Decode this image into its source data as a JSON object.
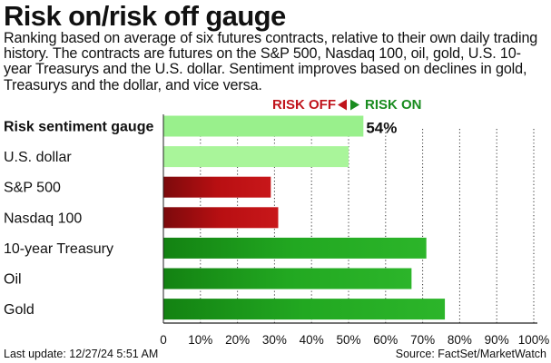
{
  "header": {
    "title": "Risk on/risk off gauge",
    "subtitle": "Ranking based on average of six futures contracts, relative to their own daily trading history. The contracts are futures on the S&P 500, Nasdaq 100, oil, gold, U.S. 10-year Treasurys and the U.S. dollar. Sentiment improves based on declines in gold, Treasurys and the dollar, and vice versa."
  },
  "legend": {
    "risk_off_label": "RISK OFF",
    "risk_on_label": "RISK ON"
  },
  "footer": {
    "last_update": "Last update: 12/27/24 5:51  AM",
    "source": "Source: FactSet/MarketWatch"
  },
  "colors": {
    "gauge": "#99f08c",
    "light_green": "#a9f59a",
    "red": "#b30f12",
    "green": "#1fa31e",
    "risk_off_text": "#c0141c",
    "risk_on_text": "#198c1f"
  },
  "chart_data": {
    "type": "bar",
    "orientation": "horizontal",
    "title": "Risk on/risk off gauge",
    "categories": [
      "Risk sentiment gauge",
      "U.S. dollar",
      "S&P 500",
      "Nasdaq 100",
      "10-year Treasury",
      "Oil",
      "Gold"
    ],
    "values": [
      54,
      50,
      29,
      31,
      71,
      67,
      76
    ],
    "bar_styles": [
      "gauge",
      "light_green",
      "red",
      "red",
      "green",
      "green",
      "green"
    ],
    "data_labels": [
      "54%",
      "",
      "",
      "",
      "",
      "",
      ""
    ],
    "xlim": [
      0,
      100
    ],
    "x_ticks": [
      "0",
      "10%",
      "20%",
      "30%",
      "40%",
      "50%",
      "60%",
      "70%",
      "80%",
      "90%",
      "100%"
    ],
    "grid": "vertical dotted"
  }
}
